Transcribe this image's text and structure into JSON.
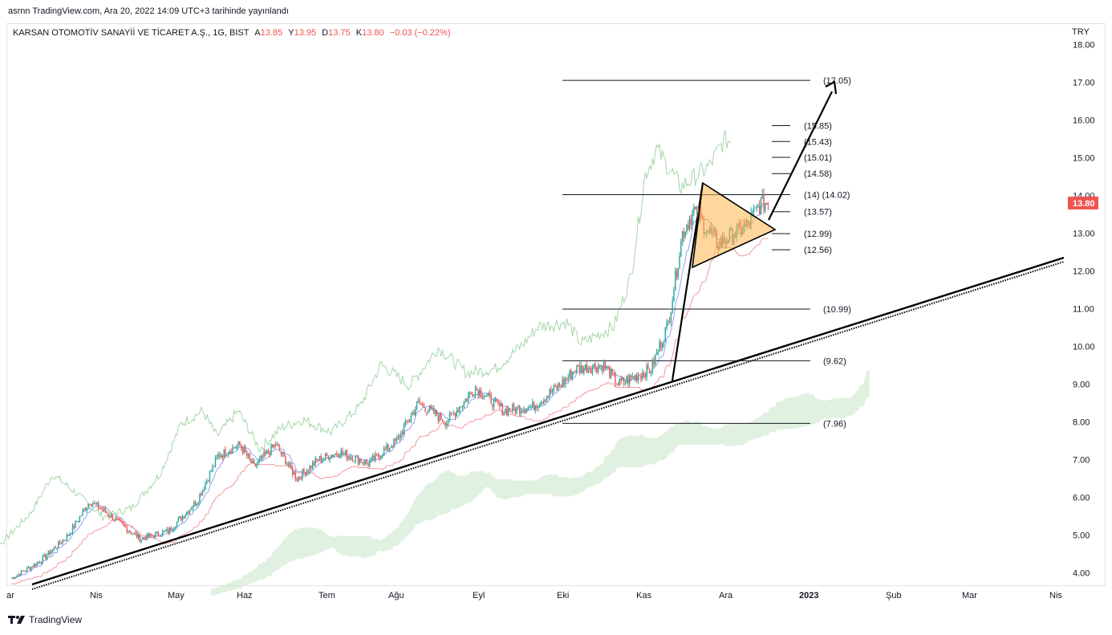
{
  "header": {
    "publish_line": "asrnn TradingView.com, Ara 20, 2022 14:09 UTC+3 tarihinde yayınlandı"
  },
  "symbol": {
    "name": "KARSAN OTOMOTİV SANAYİİ VE TİCARET A.Ş., 1G, BIST",
    "o_key": "A",
    "o": "13.85",
    "h_key": "Y",
    "h": "13.95",
    "l_key": "D",
    "l": "13.75",
    "c_key": "K",
    "c": "13.80",
    "change": "−0.03 (−0.22%)"
  },
  "currency": "TRY",
  "footer": {
    "brand": "TradingView",
    "logo": "tradingview-logo-icon"
  },
  "colors": {
    "up": "#26a69a",
    "down": "#ef5350",
    "cloud": "#c8e6c9",
    "tenkan": "#90a4f5",
    "kijun": "#f19aa0",
    "chikou": "#a5d6a7",
    "triangle_fill": "#ffb74d",
    "price_badge": "#ef5350",
    "level_line": "#131722"
  },
  "chart_data": {
    "type": "candlestick",
    "title": "KARSAN OTOMOTİV SANAYİİ VE TİCARET A.Ş., 1G, BIST",
    "ylim": [
      3.7,
      18.2
    ],
    "y_ticks": [
      "18.00",
      "17.00",
      "16.00",
      "15.00",
      "14.00",
      "13.00",
      "12.00",
      "11.00",
      "10.00",
      "9.00",
      "8.00",
      "7.00",
      "6.00",
      "5.00",
      "4.00"
    ],
    "x_ticks": [
      "ar",
      "Nis",
      "May",
      "Haz",
      "Tem",
      "Ağu",
      "Eyl",
      "Eki",
      "Kas",
      "Ara",
      "2023",
      "Şub",
      "Mar",
      "Nis"
    ],
    "last_price": "13.80",
    "levels": [
      {
        "label": "(17.05)",
        "value": 17.05
      },
      {
        "label": "(15.85)",
        "value": 15.85
      },
      {
        "label": "(15.43)",
        "value": 15.43
      },
      {
        "label": "(15.01)",
        "value": 15.01
      },
      {
        "label": "(14.58)",
        "value": 14.58
      },
      {
        "label": "(14) (14.02)",
        "value": 14.02
      },
      {
        "label": "(13.57)",
        "value": 13.57
      },
      {
        "label": "(12.99)",
        "value": 12.99
      },
      {
        "label": "(12.56)",
        "value": 12.56
      },
      {
        "label": "(10.99)",
        "value": 10.99
      },
      {
        "label": "(9.62)",
        "value": 9.62
      },
      {
        "label": "(7.96)",
        "value": 7.96
      }
    ],
    "price_anchors": [
      [
        0,
        3.85
      ],
      [
        20,
        4.3
      ],
      [
        40,
        5.0
      ],
      [
        55,
        5.9
      ],
      [
        70,
        5.5
      ],
      [
        90,
        4.9
      ],
      [
        110,
        5.1
      ],
      [
        130,
        5.9
      ],
      [
        145,
        7.1
      ],
      [
        160,
        7.4
      ],
      [
        170,
        6.8
      ],
      [
        185,
        7.4
      ],
      [
        200,
        6.5
      ],
      [
        215,
        7.0
      ],
      [
        230,
        7.2
      ],
      [
        250,
        6.9
      ],
      [
        270,
        7.5
      ],
      [
        285,
        8.5
      ],
      [
        305,
        8.0
      ],
      [
        325,
        8.9
      ],
      [
        345,
        8.3
      ],
      [
        365,
        8.4
      ],
      [
        385,
        9.0
      ],
      [
        395,
        9.4
      ],
      [
        415,
        9.5
      ],
      [
        425,
        9.0
      ],
      [
        448,
        9.4
      ],
      [
        460,
        10.6
      ],
      [
        470,
        13.0
      ],
      [
        478,
        13.6
      ],
      [
        495,
        12.7
      ],
      [
        515,
        13.2
      ],
      [
        525,
        13.8
      ],
      [
        530,
        13.8
      ]
    ]
  }
}
